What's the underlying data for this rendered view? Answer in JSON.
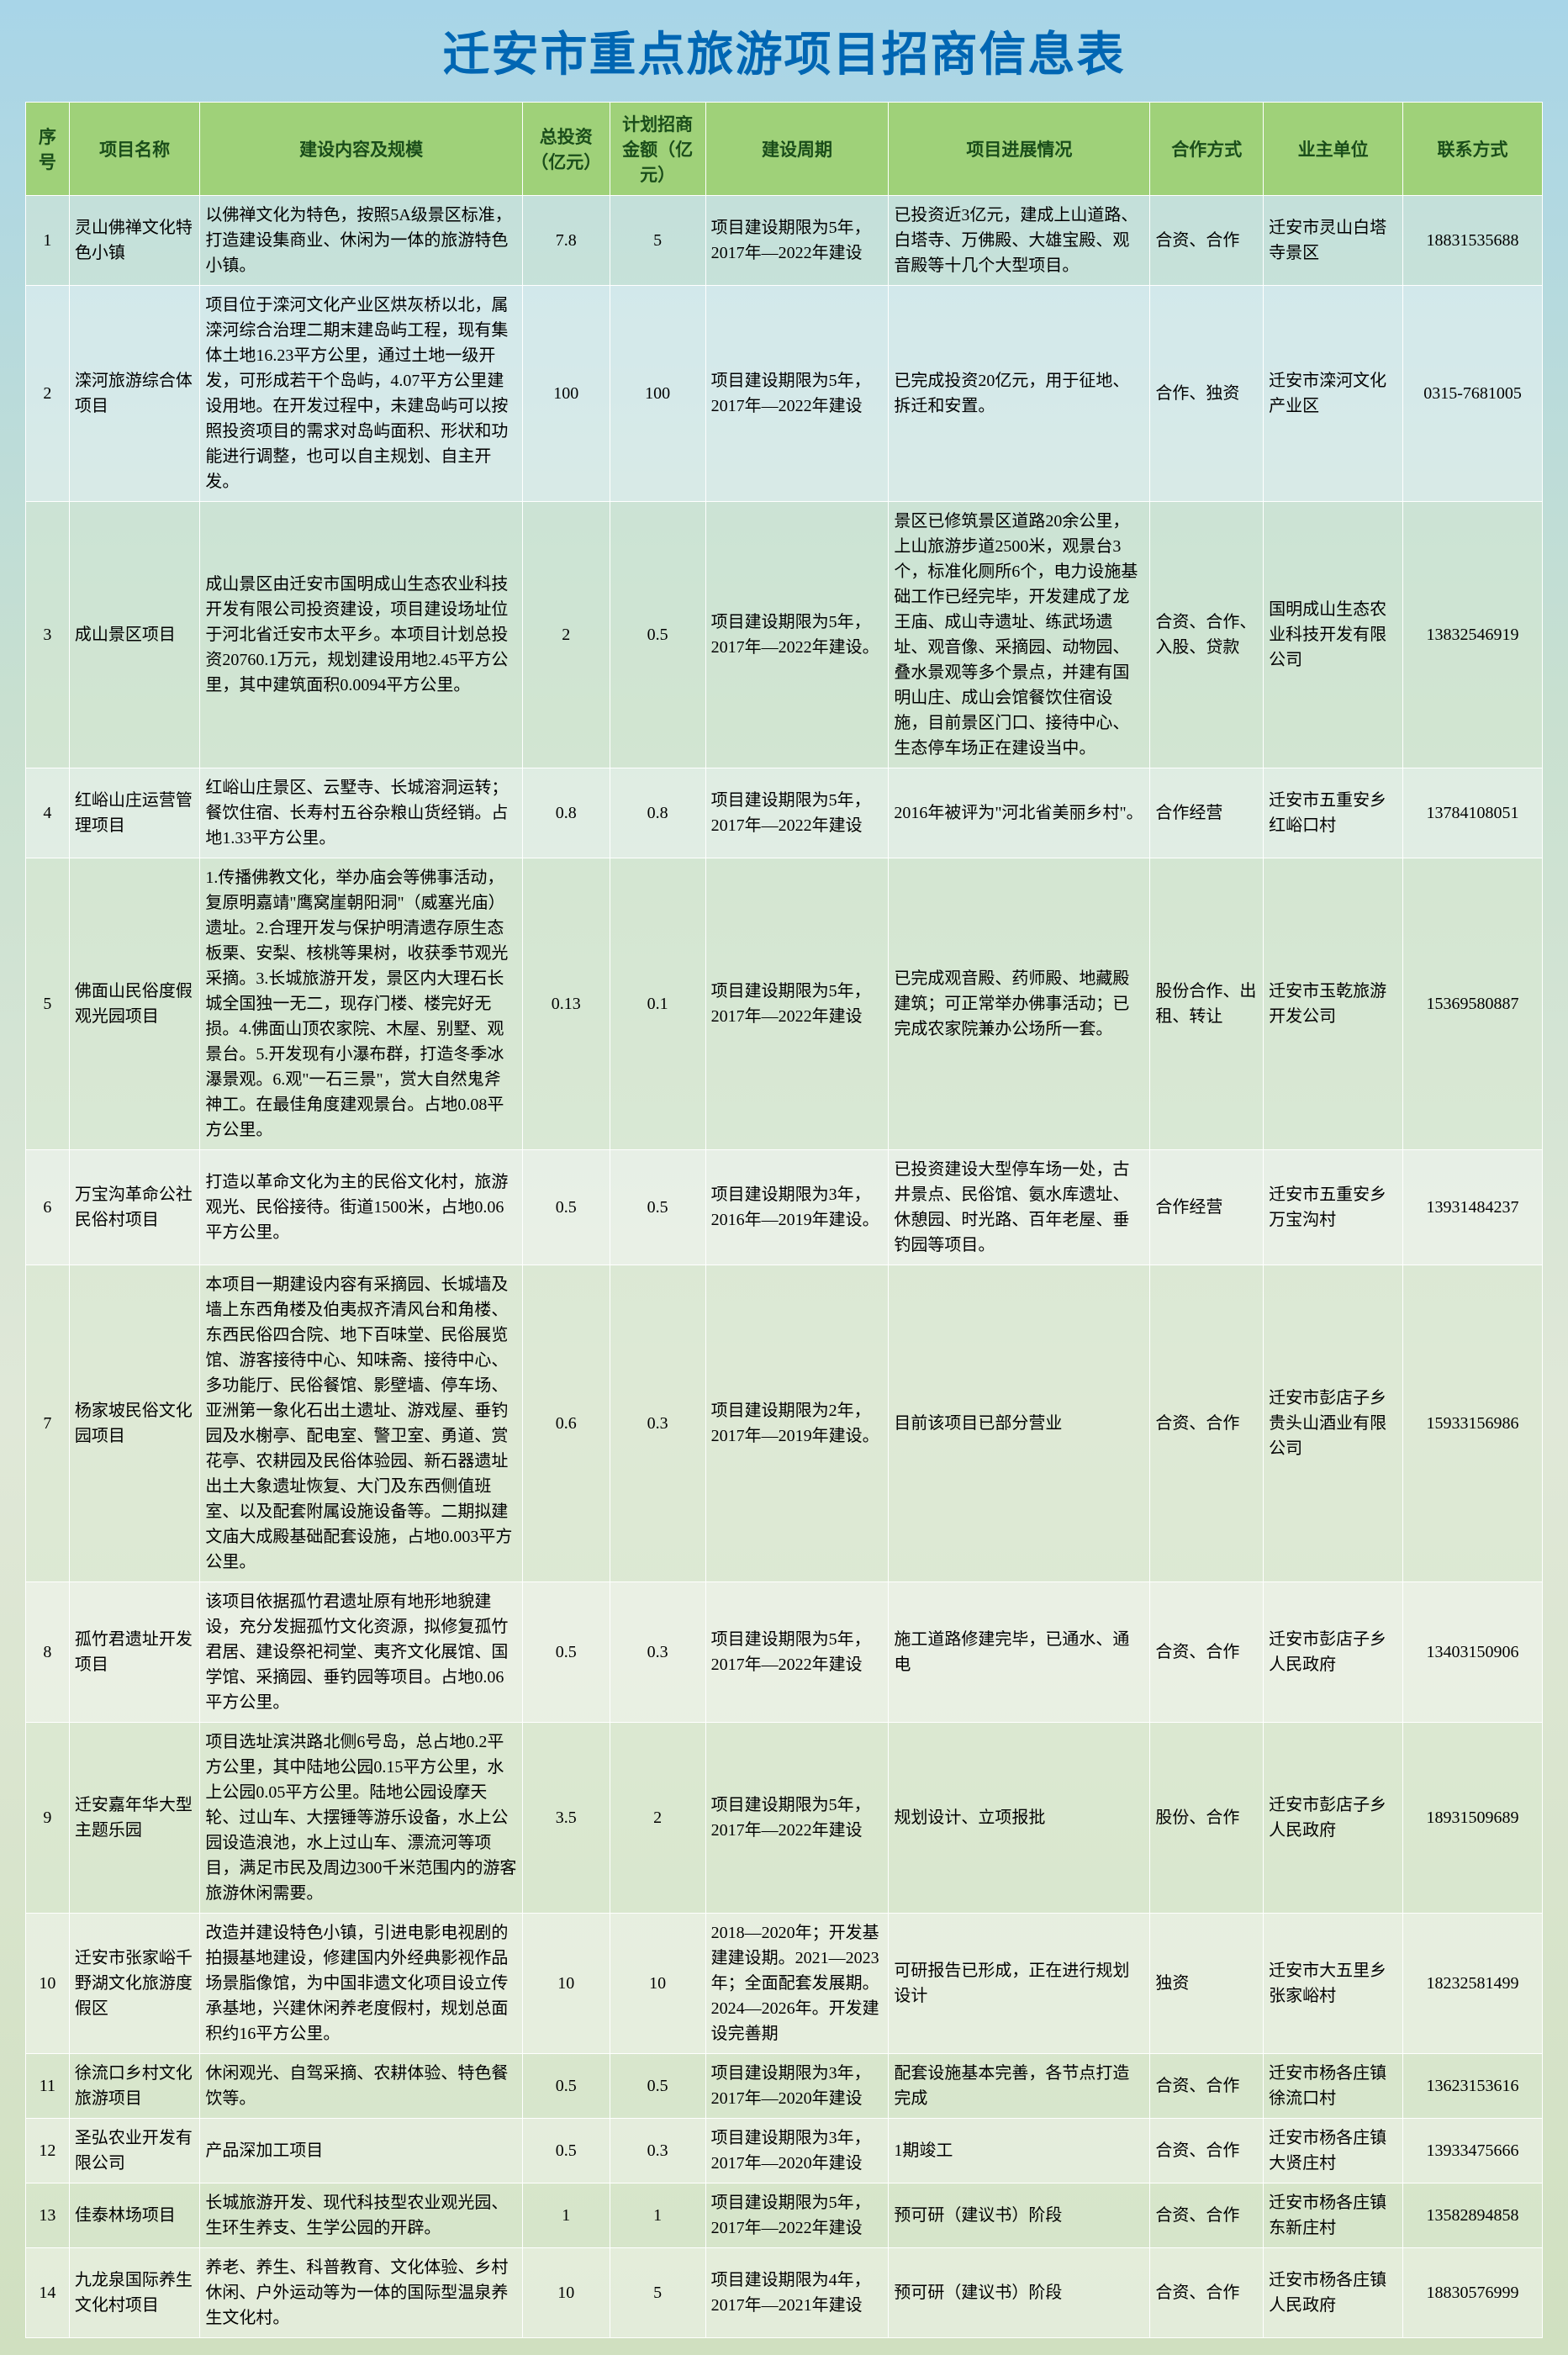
{
  "title": "迁安市重点旅游项目招商信息表",
  "headers": {
    "seq": "序号",
    "name": "项目名称",
    "content": "建设内容及规模",
    "invest": "总投资（亿元）",
    "plan": "计划招商金额（亿元）",
    "period": "建设周期",
    "progress": "项目进展情况",
    "coop": "合作方式",
    "owner": "业主单位",
    "contact": "联系方式"
  },
  "rows": [
    {
      "seq": "1",
      "name": "灵山佛禅文化特色小镇",
      "content": "以佛禅文化为特色，按照5A级景区标准，打造建设集商业、休闲为一体的旅游特色小镇。",
      "invest": "7.8",
      "plan": "5",
      "period": "项目建设期限为5年，2017年—2022年建设",
      "progress": "已投资近3亿元，建成上山道路、白塔寺、万佛殿、大雄宝殿、观音殿等十几个大型项目。",
      "coop": "合资、合作",
      "owner": "迁安市灵山白塔寺景区",
      "contact": "18831535688"
    },
    {
      "seq": "2",
      "name": "滦河旅游综合体项目",
      "content": "项目位于滦河文化产业区烘灰桥以北，属滦河综合治理二期末建岛屿工程，现有集体土地16.23平方公里，通过土地一级开发，可形成若干个岛屿，4.07平方公里建设用地。在开发过程中，未建岛屿可以按照投资项目的需求对岛屿面积、形状和功能进行调整，也可以自主规划、自主开发。",
      "invest": "100",
      "plan": "100",
      "period": "项目建设期限为5年，2017年—2022年建设",
      "progress": "已完成投资20亿元，用于征地、拆迁和安置。",
      "coop": "合作、独资",
      "owner": "迁安市滦河文化产业区",
      "contact": "0315-7681005"
    },
    {
      "seq": "3",
      "name": "成山景区项目",
      "content": "成山景区由迁安市国明成山生态农业科技开发有限公司投资建设，项目建设场址位于河北省迁安市太平乡。本项目计划总投资20760.1万元，规划建设用地2.45平方公里，其中建筑面积0.0094平方公里。",
      "invest": "2",
      "plan": "0.5",
      "period": "项目建设期限为5年，2017年—2022年建设。",
      "progress": "景区已修筑景区道路20余公里，上山旅游步道2500米，观景台3个，标准化厕所6个，电力设施基础工作已经完毕，开发建成了龙王庙、成山寺遗址、练武场遗址、观音像、采摘园、动物园、叠水景观等多个景点，并建有国明山庄、成山会馆餐饮住宿设施，目前景区门口、接待中心、生态停车场正在建设当中。",
      "coop": "合资、合作、入股、贷款",
      "owner": "国明成山生态农业科技开发有限公司",
      "contact": "13832546919"
    },
    {
      "seq": "4",
      "name": "红峪山庄运营管理项目",
      "content": "红峪山庄景区、云墅寺、长城溶洞运转；餐饮住宿、长寿村五谷杂粮山货经销。占地1.33平方公里。",
      "invest": "0.8",
      "plan": "0.8",
      "period": "项目建设期限为5年，2017年—2022年建设",
      "progress": "2016年被评为\"河北省美丽乡村\"。",
      "coop": "合作经营",
      "owner": "迁安市五重安乡红峪口村",
      "contact": "13784108051"
    },
    {
      "seq": "5",
      "name": "佛面山民俗度假观光园项目",
      "content": "1.传播佛教文化，举办庙会等佛事活动，复原明嘉靖\"鹰窝崖朝阳洞\"（威塞光庙）遗址。2.合理开发与保护明清遗存原生态板栗、安梨、核桃等果树，收获季节观光采摘。3.长城旅游开发，景区内大理石长城全国独一无二，现存门楼、楼完好无损。4.佛面山顶农家院、木屋、别墅、观景台。5.开发现有小瀑布群，打造冬季冰瀑景观。6.观\"一石三景\"，赏大自然鬼斧神工。在最佳角度建观景台。占地0.08平方公里。",
      "invest": "0.13",
      "plan": "0.1",
      "period": "项目建设期限为5年，2017年—2022年建设",
      "progress": "已完成观音殿、药师殿、地藏殿建筑；可正常举办佛事活动；已完成农家院兼办公场所一套。",
      "coop": "股份合作、出租、转让",
      "owner": "迁安市玉乾旅游开发公司",
      "contact": "15369580887"
    },
    {
      "seq": "6",
      "name": "万宝沟革命公社民俗村项目",
      "content": "打造以革命文化为主的民俗文化村，旅游观光、民俗接待。街道1500米，占地0.06平方公里。",
      "invest": "0.5",
      "plan": "0.5",
      "period": "项目建设期限为3年，2016年—2019年建设。",
      "progress": "已投资建设大型停车场一处，古井景点、民俗馆、氨水库遗址、休憩园、时光路、百年老屋、垂钓园等项目。",
      "coop": "合作经营",
      "owner": "迁安市五重安乡万宝沟村",
      "contact": "13931484237"
    },
    {
      "seq": "7",
      "name": "杨家坡民俗文化园项目",
      "content": "本项目一期建设内容有采摘园、长城墙及墙上东西角楼及伯夷叔齐清风台和角楼、东西民俗四合院、地下百味堂、民俗展览馆、游客接待中心、知味斋、接待中心、多功能厅、民俗餐馆、影壁墙、停车场、亚洲第一象化石出土遗址、游戏屋、垂钓园及水榭亭、配电室、警卫室、勇道、赏花亭、农耕园及民俗体验园、新石器遗址出土大象遗址恢复、大门及东西侧值班室、以及配套附属设施设备等。二期拟建文庙大成殿基础配套设施，占地0.003平方公里。",
      "invest": "0.6",
      "plan": "0.3",
      "period": "项目建设期限为2年，2017年—2019年建设。",
      "progress": "目前该项目已部分营业",
      "coop": "合资、合作",
      "owner": "迁安市彭店子乡贵头山酒业有限公司",
      "contact": "15933156986"
    },
    {
      "seq": "8",
      "name": "孤竹君遗址开发项目",
      "content": "该项目依据孤竹君遗址原有地形地貌建设，充分发掘孤竹文化资源，拟修复孤竹君居、建设祭祀祠堂、夷齐文化展馆、国学馆、采摘园、垂钓园等项目。占地0.06平方公里。",
      "invest": "0.5",
      "plan": "0.3",
      "period": "项目建设期限为5年，2017年—2022年建设",
      "progress": "施工道路修建完毕，已通水、通电",
      "coop": "合资、合作",
      "owner": "迁安市彭店子乡人民政府",
      "contact": "13403150906"
    },
    {
      "seq": "9",
      "name": "迁安嘉年华大型主题乐园",
      "content": "项目选址滨洪路北侧6号岛，总占地0.2平方公里，其中陆地公园0.15平方公里，水上公园0.05平方公里。陆地公园设摩天轮、过山车、大摆锤等游乐设备，水上公园设造浪池，水上过山车、漂流河等项目，满足市民及周边300千米范围内的游客旅游休闲需要。",
      "invest": "3.5",
      "plan": "2",
      "period": "项目建设期限为5年，2017年—2022年建设",
      "progress": "规划设计、立项报批",
      "coop": "股份、合作",
      "owner": "迁安市彭店子乡人民政府",
      "contact": "18931509689"
    },
    {
      "seq": "10",
      "name": "迁安市张家峪千野湖文化旅游度假区",
      "content": "改造并建设特色小镇，引进电影电视剧的拍摄基地建设，修建国内外经典影视作品场景脂像馆，为中国非遗文化项目设立传承基地，兴建休闲养老度假村，规划总面积约16平方公里。",
      "invest": "10",
      "plan": "10",
      "period": "2018—2020年；开发基建建设期。2021—2023年；全面配套发展期。2024—2026年。开发建设完善期",
      "progress": "可研报告已形成，正在进行规划设计",
      "coop": "独资",
      "owner": "迁安市大五里乡张家峪村",
      "contact": "18232581499"
    },
    {
      "seq": "11",
      "name": "徐流口乡村文化旅游项目",
      "content": "休闲观光、自驾采摘、农耕体验、特色餐饮等。",
      "invest": "0.5",
      "plan": "0.5",
      "period": "项目建设期限为3年，2017年—2020年建设",
      "progress": "配套设施基本完善，各节点打造完成",
      "coop": "合资、合作",
      "owner": "迁安市杨各庄镇徐流口村",
      "contact": "13623153616"
    },
    {
      "seq": "12",
      "name": "圣弘农业开发有限公司",
      "content": "产品深加工项目",
      "invest": "0.5",
      "plan": "0.3",
      "period": "项目建设期限为3年，2017年—2020年建设",
      "progress": "1期竣工",
      "coop": "合资、合作",
      "owner": "迁安市杨各庄镇大贤庄村",
      "contact": "13933475666"
    },
    {
      "seq": "13",
      "name": "佳泰林场项目",
      "content": "长城旅游开发、现代科技型农业观光园、生环生养支、生学公园的开辟。",
      "invest": "1",
      "plan": "1",
      "period": "项目建设期限为5年，2017年—2022年建设",
      "progress": "预可研（建议书）阶段",
      "coop": "合资、合作",
      "owner": "迁安市杨各庄镇东新庄村",
      "contact": "13582894858"
    },
    {
      "seq": "14",
      "name": "九龙泉国际养生文化村项目",
      "content": "养老、养生、科普教育、文化体验、乡村休闲、户外运动等为一体的国际型温泉养生文化村。",
      "invest": "10",
      "plan": "5",
      "period": "项目建设期限为4年，2017年—2021年建设",
      "progress": "预可研（建议书）阶段",
      "coop": "合资、合作",
      "owner": "迁安市杨各庄镇人民政府",
      "contact": "18830576999"
    }
  ]
}
